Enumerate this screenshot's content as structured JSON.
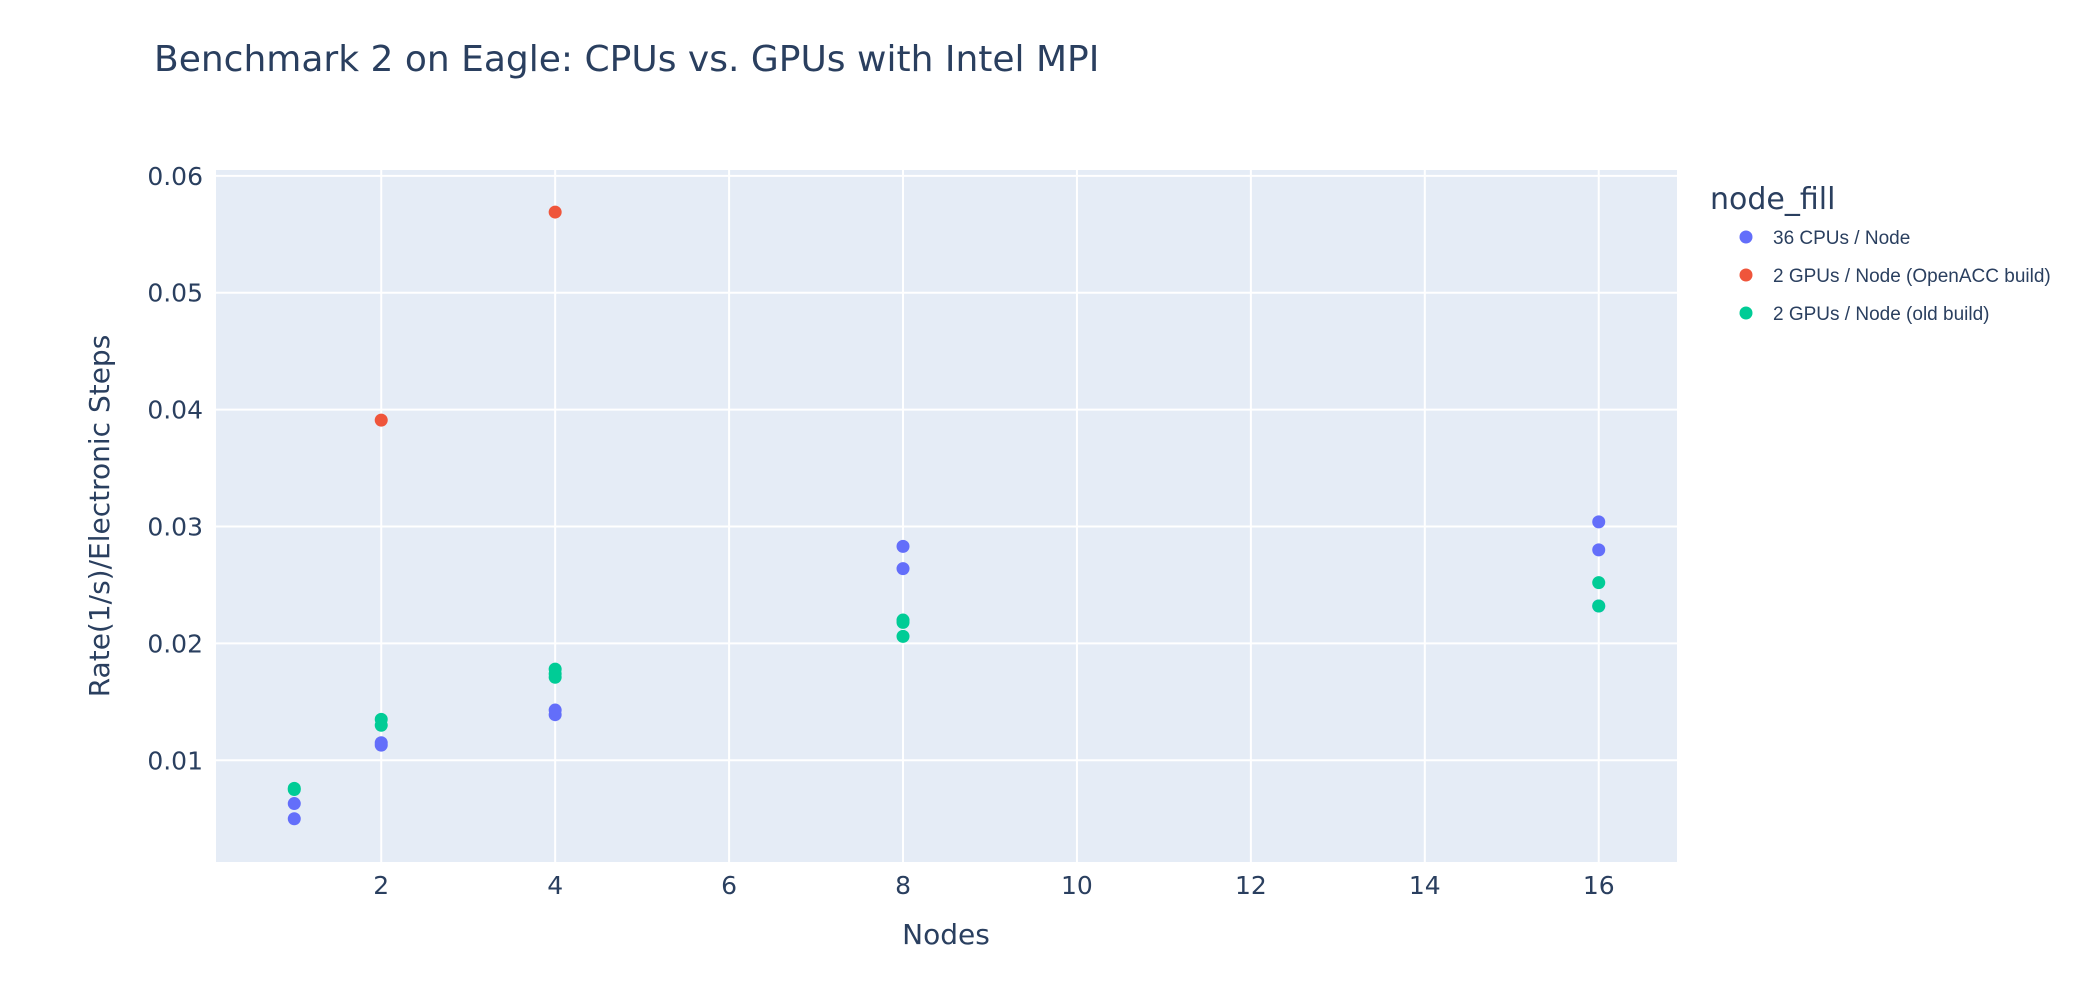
{
  "chart_data": {
    "type": "scatter",
    "title": "Benchmark 2 on Eagle: CPUs vs. GPUs with Intel MPI",
    "xlabel": "Nodes",
    "ylabel": "Rate(1/s)/Electronic Steps",
    "xlim": [
      0.1,
      16.9
    ],
    "ylim": [
      0.0013,
      0.0605
    ],
    "xticks": [
      2,
      4,
      6,
      8,
      10,
      12,
      14,
      16
    ],
    "xtick_labels": [
      "2",
      "4",
      "6",
      "8",
      "10",
      "12",
      "14",
      "16"
    ],
    "yticks": [
      0.01,
      0.02,
      0.03,
      0.04,
      0.05,
      0.06
    ],
    "ytick_labels": [
      "0.01",
      "0.02",
      "0.03",
      "0.04",
      "0.05",
      "0.06"
    ],
    "grid": true,
    "plot_background": "#e5ecf6",
    "legend": {
      "title": "node_fill",
      "placement": "right"
    },
    "series": [
      {
        "name": "36 CPUs / Node",
        "color": "#636efa",
        "points": [
          {
            "x": 1,
            "y": 0.005
          },
          {
            "x": 1,
            "y": 0.0063
          },
          {
            "x": 2,
            "y": 0.0113
          },
          {
            "x": 2,
            "y": 0.0115
          },
          {
            "x": 4,
            "y": 0.0139
          },
          {
            "x": 4,
            "y": 0.0143
          },
          {
            "x": 8,
            "y": 0.0264
          },
          {
            "x": 8,
            "y": 0.0283
          },
          {
            "x": 16,
            "y": 0.0232
          },
          {
            "x": 16,
            "y": 0.028
          },
          {
            "x": 16,
            "y": 0.0304
          }
        ]
      },
      {
        "name": "2 GPUs / Node (OpenACC build)",
        "color": "#ef553b",
        "points": [
          {
            "x": 2,
            "y": 0.0391
          },
          {
            "x": 4,
            "y": 0.0569
          }
        ]
      },
      {
        "name": "2 GPUs / Node (old build)",
        "color": "#00cc96",
        "points": [
          {
            "x": 1,
            "y": 0.0075
          },
          {
            "x": 1,
            "y": 0.0076
          },
          {
            "x": 2,
            "y": 0.013
          },
          {
            "x": 2,
            "y": 0.0135
          },
          {
            "x": 4,
            "y": 0.0171
          },
          {
            "x": 4,
            "y": 0.0174
          },
          {
            "x": 4,
            "y": 0.0178
          },
          {
            "x": 8,
            "y": 0.0206
          },
          {
            "x": 8,
            "y": 0.0218
          },
          {
            "x": 8,
            "y": 0.022
          },
          {
            "x": 16,
            "y": 0.0232
          },
          {
            "x": 16,
            "y": 0.0252
          }
        ]
      }
    ]
  }
}
